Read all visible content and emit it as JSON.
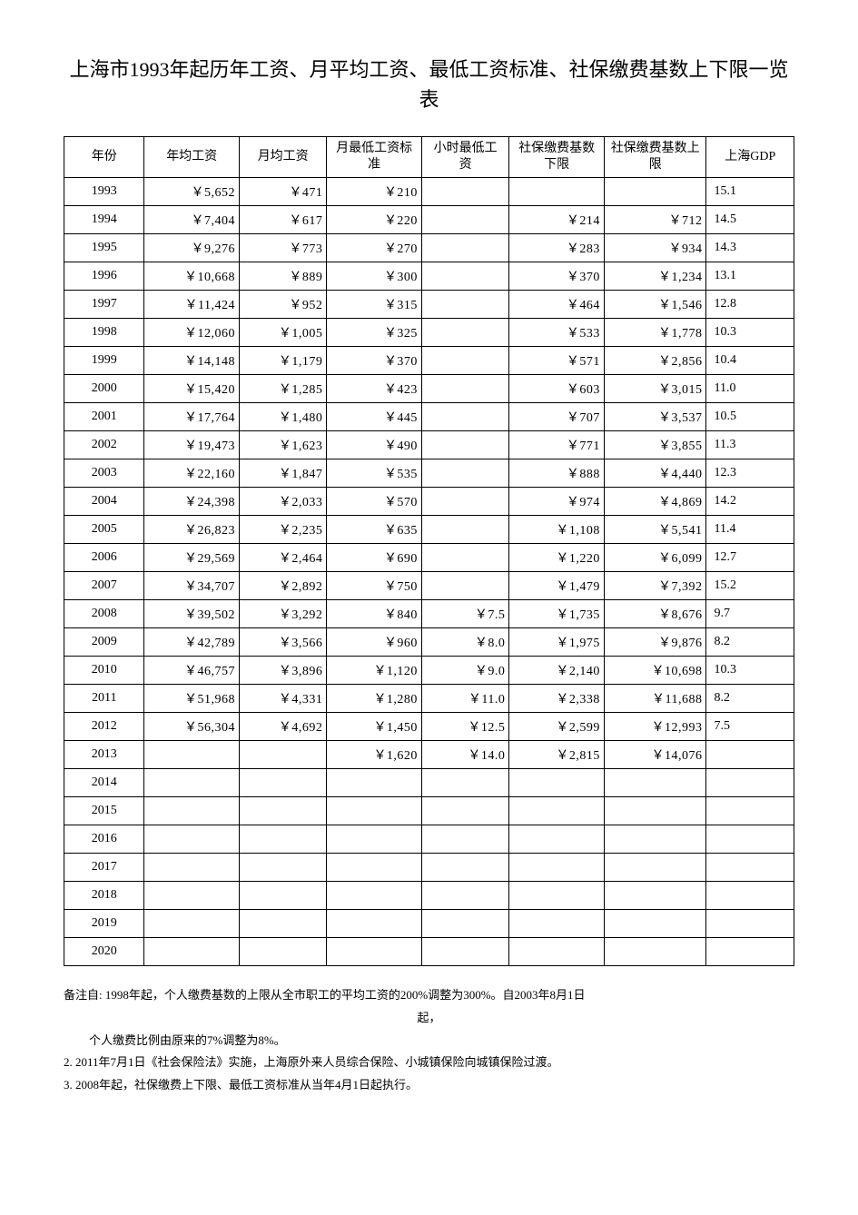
{
  "title": "上海市1993年起历年工资、月平均工资、最低工资标准、社保缴费基数上下限一览表",
  "headers": {
    "year": "年份",
    "annual": "年均工资",
    "monthly": "月均工资",
    "min_month": "月最低工资标准",
    "min_hour": "小时最低工资",
    "sb_lower": "社保缴费基数下限",
    "sb_upper": "社保缴费基数上限",
    "gdp": "上海GDP"
  },
  "rows": [
    {
      "year": "1993",
      "annual": "￥5,652",
      "monthly": "￥471",
      "min_month": "￥210",
      "min_hour": "",
      "sb_lower": "",
      "sb_upper": "",
      "gdp": "15.1"
    },
    {
      "year": "1994",
      "annual": "￥7,404",
      "monthly": "￥617",
      "min_month": "￥220",
      "min_hour": "",
      "sb_lower": "￥214",
      "sb_upper": "￥712",
      "gdp": "14.5"
    },
    {
      "year": "1995",
      "annual": "￥9,276",
      "monthly": "￥773",
      "min_month": "￥270",
      "min_hour": "",
      "sb_lower": "￥283",
      "sb_upper": "￥934",
      "gdp": "14.3"
    },
    {
      "year": "1996",
      "annual": "￥10,668",
      "monthly": "￥889",
      "min_month": "￥300",
      "min_hour": "",
      "sb_lower": "￥370",
      "sb_upper": "￥1,234",
      "gdp": "13.1"
    },
    {
      "year": "1997",
      "annual": "￥11,424",
      "monthly": "￥952",
      "min_month": "￥315",
      "min_hour": "",
      "sb_lower": "￥464",
      "sb_upper": "￥1,546",
      "gdp": "12.8"
    },
    {
      "year": "1998",
      "annual": "￥12,060",
      "monthly": "￥1,005",
      "min_month": "￥325",
      "min_hour": "",
      "sb_lower": "￥533",
      "sb_upper": "￥1,778",
      "gdp": "10.3"
    },
    {
      "year": "1999",
      "annual": "￥14,148",
      "monthly": "￥1,179",
      "min_month": "￥370",
      "min_hour": "",
      "sb_lower": "￥571",
      "sb_upper": "￥2,856",
      "gdp": "10.4"
    },
    {
      "year": "2000",
      "annual": "￥15,420",
      "monthly": "￥1,285",
      "min_month": "￥423",
      "min_hour": "",
      "sb_lower": "￥603",
      "sb_upper": "￥3,015",
      "gdp": "11.0"
    },
    {
      "year": "2001",
      "annual": "￥17,764",
      "monthly": "￥1,480",
      "min_month": "￥445",
      "min_hour": "",
      "sb_lower": "￥707",
      "sb_upper": "￥3,537",
      "gdp": "10.5"
    },
    {
      "year": "2002",
      "annual": "￥19,473",
      "monthly": "￥1,623",
      "min_month": "￥490",
      "min_hour": "",
      "sb_lower": "￥771",
      "sb_upper": "￥3,855",
      "gdp": "11.3"
    },
    {
      "year": "2003",
      "annual": "￥22,160",
      "monthly": "￥1,847",
      "min_month": "￥535",
      "min_hour": "",
      "sb_lower": "￥888",
      "sb_upper": "￥4,440",
      "gdp": "12.3"
    },
    {
      "year": "2004",
      "annual": "￥24,398",
      "monthly": "￥2,033",
      "min_month": "￥570",
      "min_hour": "",
      "sb_lower": "￥974",
      "sb_upper": "￥4,869",
      "gdp": "14.2"
    },
    {
      "year": "2005",
      "annual": "￥26,823",
      "monthly": "￥2,235",
      "min_month": "￥635",
      "min_hour": "",
      "sb_lower": "￥1,108",
      "sb_upper": "￥5,541",
      "gdp": "11.4"
    },
    {
      "year": "2006",
      "annual": "￥29,569",
      "monthly": "￥2,464",
      "min_month": "￥690",
      "min_hour": "",
      "sb_lower": "￥1,220",
      "sb_upper": "￥6,099",
      "gdp": "12.7"
    },
    {
      "year": "2007",
      "annual": "￥34,707",
      "monthly": "￥2,892",
      "min_month": "￥750",
      "min_hour": "",
      "sb_lower": "￥1,479",
      "sb_upper": "￥7,392",
      "gdp": "15.2"
    },
    {
      "year": "2008",
      "annual": "￥39,502",
      "monthly": "￥3,292",
      "min_month": "￥840",
      "min_hour": "￥7.5",
      "sb_lower": "￥1,735",
      "sb_upper": "￥8,676",
      "gdp": "9.7"
    },
    {
      "year": "2009",
      "annual": "￥42,789",
      "monthly": "￥3,566",
      "min_month": "￥960",
      "min_hour": "￥8.0",
      "sb_lower": "￥1,975",
      "sb_upper": "￥9,876",
      "gdp": "8.2"
    },
    {
      "year": "2010",
      "annual": "￥46,757",
      "monthly": "￥3,896",
      "min_month": "￥1,120",
      "min_hour": "￥9.0",
      "sb_lower": "￥2,140",
      "sb_upper": "￥10,698",
      "gdp": "10.3"
    },
    {
      "year": "2011",
      "annual": "￥51,968",
      "monthly": "￥4,331",
      "min_month": "￥1,280",
      "min_hour": "￥11.0",
      "sb_lower": "￥2,338",
      "sb_upper": "￥11,688",
      "gdp": "8.2"
    },
    {
      "year": "2012",
      "annual": "￥56,304",
      "monthly": "￥4,692",
      "min_month": "￥1,450",
      "min_hour": "￥12.5",
      "sb_lower": "￥2,599",
      "sb_upper": "￥12,993",
      "gdp": "7.5"
    },
    {
      "year": "2013",
      "annual": "",
      "monthly": "",
      "min_month": "￥1,620",
      "min_hour": "￥14.0",
      "sb_lower": "￥2,815",
      "sb_upper": "￥14,076",
      "gdp": ""
    },
    {
      "year": "2014",
      "annual": "",
      "monthly": "",
      "min_month": "",
      "min_hour": "",
      "sb_lower": "",
      "sb_upper": "",
      "gdp": ""
    },
    {
      "year": "2015",
      "annual": "",
      "monthly": "",
      "min_month": "",
      "min_hour": "",
      "sb_lower": "",
      "sb_upper": "",
      "gdp": ""
    },
    {
      "year": "2016",
      "annual": "",
      "monthly": "",
      "min_month": "",
      "min_hour": "",
      "sb_lower": "",
      "sb_upper": "",
      "gdp": ""
    },
    {
      "year": "2017",
      "annual": "",
      "monthly": "",
      "min_month": "",
      "min_hour": "",
      "sb_lower": "",
      "sb_upper": "",
      "gdp": ""
    },
    {
      "year": "2018",
      "annual": "",
      "monthly": "",
      "min_month": "",
      "min_hour": "",
      "sb_lower": "",
      "sb_upper": "",
      "gdp": ""
    },
    {
      "year": "2019",
      "annual": "",
      "monthly": "",
      "min_month": "",
      "min_hour": "",
      "sb_lower": "",
      "sb_upper": "",
      "gdp": ""
    },
    {
      "year": "2020",
      "annual": "",
      "monthly": "",
      "min_month": "",
      "min_hour": "",
      "sb_lower": "",
      "sb_upper": "",
      "gdp": ""
    }
  ],
  "notes": {
    "line1a": "备注自: 1998年起，个人缴费基数的上限从全市职工的平均工资的200%调整为300%。自2003年8月1日",
    "line1b": "起，",
    "line1c": "个人缴费比例由原来的7%调整为8%。",
    "line2": "2. 2011年7月1日《社会保险法》实施，上海原外来人员综合保险、小城镇保险向城镇保险过渡。",
    "line3": "3. 2008年起，社保缴费上下限、最低工资标准从当年4月1日起执行。"
  }
}
